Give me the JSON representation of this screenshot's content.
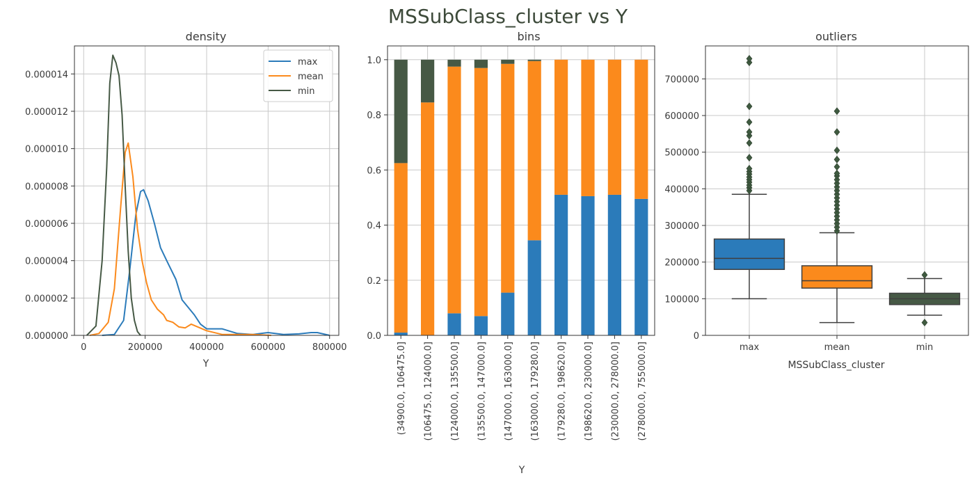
{
  "suptitle": "MSSubClass_cluster   vs   Y",
  "colors": {
    "max": "#2b7bba",
    "mean": "#fb8a1c",
    "min": "#465945",
    "grid": "#c8c8c8",
    "axis": "#333333"
  },
  "chart_data": [
    {
      "type": "line",
      "title": "density",
      "xlabel": "Y",
      "ylabel": "",
      "xlim": [
        -30000,
        830000
      ],
      "ylim": [
        0,
        1.55e-05
      ],
      "xticks": [
        0,
        200000,
        400000,
        600000,
        800000
      ],
      "xtick_labels": [
        "0",
        "200000",
        "400000",
        "600000",
        "800000"
      ],
      "yticks": [
        0,
        2e-06,
        4e-06,
        6e-06,
        8e-06,
        1e-05,
        1.2e-05,
        1.4e-05
      ],
      "ytick_labels": [
        "0.000000",
        "0.000002",
        "0.000004",
        "0.000006",
        "0.000008",
        "0.000010",
        "0.000012",
        "0.000014"
      ],
      "grid": true,
      "legend": "top-right",
      "series": [
        {
          "name": "max",
          "color": "#2b7bba",
          "x": [
            60000,
            100000,
            130000,
            150000,
            170000,
            185000,
            195000,
            210000,
            230000,
            250000,
            270000,
            300000,
            320000,
            340000,
            360000,
            380000,
            400000,
            450000,
            500000,
            550000,
            600000,
            650000,
            700000,
            740000,
            760000,
            800000
          ],
          "y": [
            0,
            5e-08,
            8e-07,
            3.5e-06,
            6.5e-06,
            7.7e-06,
            7.8e-06,
            7.2e-06,
            6e-06,
            4.7e-06,
            4e-06,
            3e-06,
            1.9e-06,
            1.5e-06,
            1.1e-06,
            6e-07,
            3.5e-07,
            3.5e-07,
            1e-07,
            5e-08,
            1.5e-07,
            5e-08,
            8e-08,
            1.5e-07,
            1.5e-07,
            0
          ]
        },
        {
          "name": "mean",
          "color": "#fb8a1c",
          "x": [
            20000,
            50000,
            80000,
            100000,
            120000,
            135000,
            145000,
            160000,
            175000,
            190000,
            205000,
            220000,
            240000,
            260000,
            270000,
            290000,
            310000,
            330000,
            350000,
            400000,
            450000,
            500000,
            550000,
            610000
          ],
          "y": [
            0,
            1e-07,
            7e-07,
            2.5e-06,
            6.8e-06,
            9.8e-06,
            1.03e-05,
            8.5e-06,
            5.7e-06,
            4e-06,
            2.8e-06,
            1.9e-06,
            1.4e-06,
            1.1e-06,
            8e-07,
            7e-07,
            4.5e-07,
            4e-07,
            6e-07,
            2.5e-07,
            5e-08,
            5e-08,
            5e-08,
            0
          ]
        },
        {
          "name": "min",
          "color": "#465945",
          "x": [
            10000,
            40000,
            60000,
            75000,
            85000,
            95000,
            105000,
            115000,
            125000,
            135000,
            145000,
            155000,
            165000,
            175000,
            185000
          ],
          "y": [
            0,
            5e-07,
            4e-06,
            9e-06,
            1.35e-05,
            1.5e-05,
            1.46e-05,
            1.39e-05,
            1.18e-05,
            8e-06,
            4.5e-06,
            2e-06,
            8e-07,
            2e-07,
            0
          ]
        }
      ]
    },
    {
      "type": "bar",
      "stacked": true,
      "title": "bins",
      "xlabel": "Y",
      "ylabel": "",
      "ylim": [
        0,
        1.05
      ],
      "yticks": [
        0,
        0.2,
        0.4,
        0.6,
        0.8,
        1.0
      ],
      "ytick_labels": [
        "0.0",
        "0.2",
        "0.4",
        "0.6",
        "0.8",
        "1.0"
      ],
      "grid": true,
      "categories": [
        "(34900.0, 106475.0]",
        "(106475.0, 124000.0]",
        "(124000.0, 135500.0]",
        "(135500.0, 147000.0]",
        "(147000.0, 163000.0]",
        "(163000.0, 179280.0]",
        "(179280.0, 198620.0]",
        "(198620.0, 230000.0]",
        "(230000.0, 278000.0]",
        "(278000.0, 755000.0]"
      ],
      "series": [
        {
          "name": "max",
          "color": "#2b7bba",
          "values": [
            0.01,
            0.0,
            0.08,
            0.07,
            0.155,
            0.345,
            0.51,
            0.505,
            0.51,
            0.495
          ]
        },
        {
          "name": "mean",
          "color": "#fb8a1c",
          "values": [
            0.615,
            0.845,
            0.895,
            0.9,
            0.83,
            0.65,
            0.49,
            0.495,
            0.49,
            0.505
          ]
        },
        {
          "name": "min",
          "color": "#465945",
          "values": [
            0.375,
            0.155,
            0.025,
            0.03,
            0.015,
            0.005,
            0.0,
            0.0,
            0.0,
            0.0
          ]
        }
      ]
    },
    {
      "type": "box",
      "title": "outliers",
      "xlabel": "MSSubClass_cluster",
      "ylabel": "",
      "ylim": [
        0,
        790000
      ],
      "yticks": [
        0,
        100000,
        200000,
        300000,
        400000,
        500000,
        600000,
        700000
      ],
      "ytick_labels": [
        "0",
        "100000",
        "200000",
        "300000",
        "400000",
        "500000",
        "600000",
        "700000"
      ],
      "grid": true,
      "categories": [
        "max",
        "mean",
        "min"
      ],
      "boxes": [
        {
          "name": "max",
          "color": "#2b7bba",
          "whisker_low": 100000,
          "q1": 180000,
          "median": 210000,
          "q3": 263000,
          "whisker_high": 385000,
          "outliers": [
            395000,
            403000,
            410000,
            418000,
            425000,
            432000,
            440000,
            447000,
            455000,
            485000,
            525000,
            545000,
            555000,
            582000,
            625000,
            745000,
            755000
          ]
        },
        {
          "name": "mean",
          "color": "#fb8a1c",
          "whisker_low": 35000,
          "q1": 129000,
          "median": 149000,
          "q3": 190000,
          "whisker_high": 280000,
          "outliers": [
            285000,
            295000,
            305000,
            315000,
            325000,
            335000,
            345000,
            355000,
            365000,
            375000,
            385000,
            395000,
            405000,
            415000,
            425000,
            435000,
            442000,
            460000,
            480000,
            505000,
            555000,
            612000
          ]
        },
        {
          "name": "min",
          "color": "#465945",
          "whisker_low": 55000,
          "q1": 84000,
          "median": 100000,
          "q3": 115000,
          "whisker_high": 155000,
          "outliers": [
            35000,
            165000
          ]
        }
      ]
    }
  ]
}
